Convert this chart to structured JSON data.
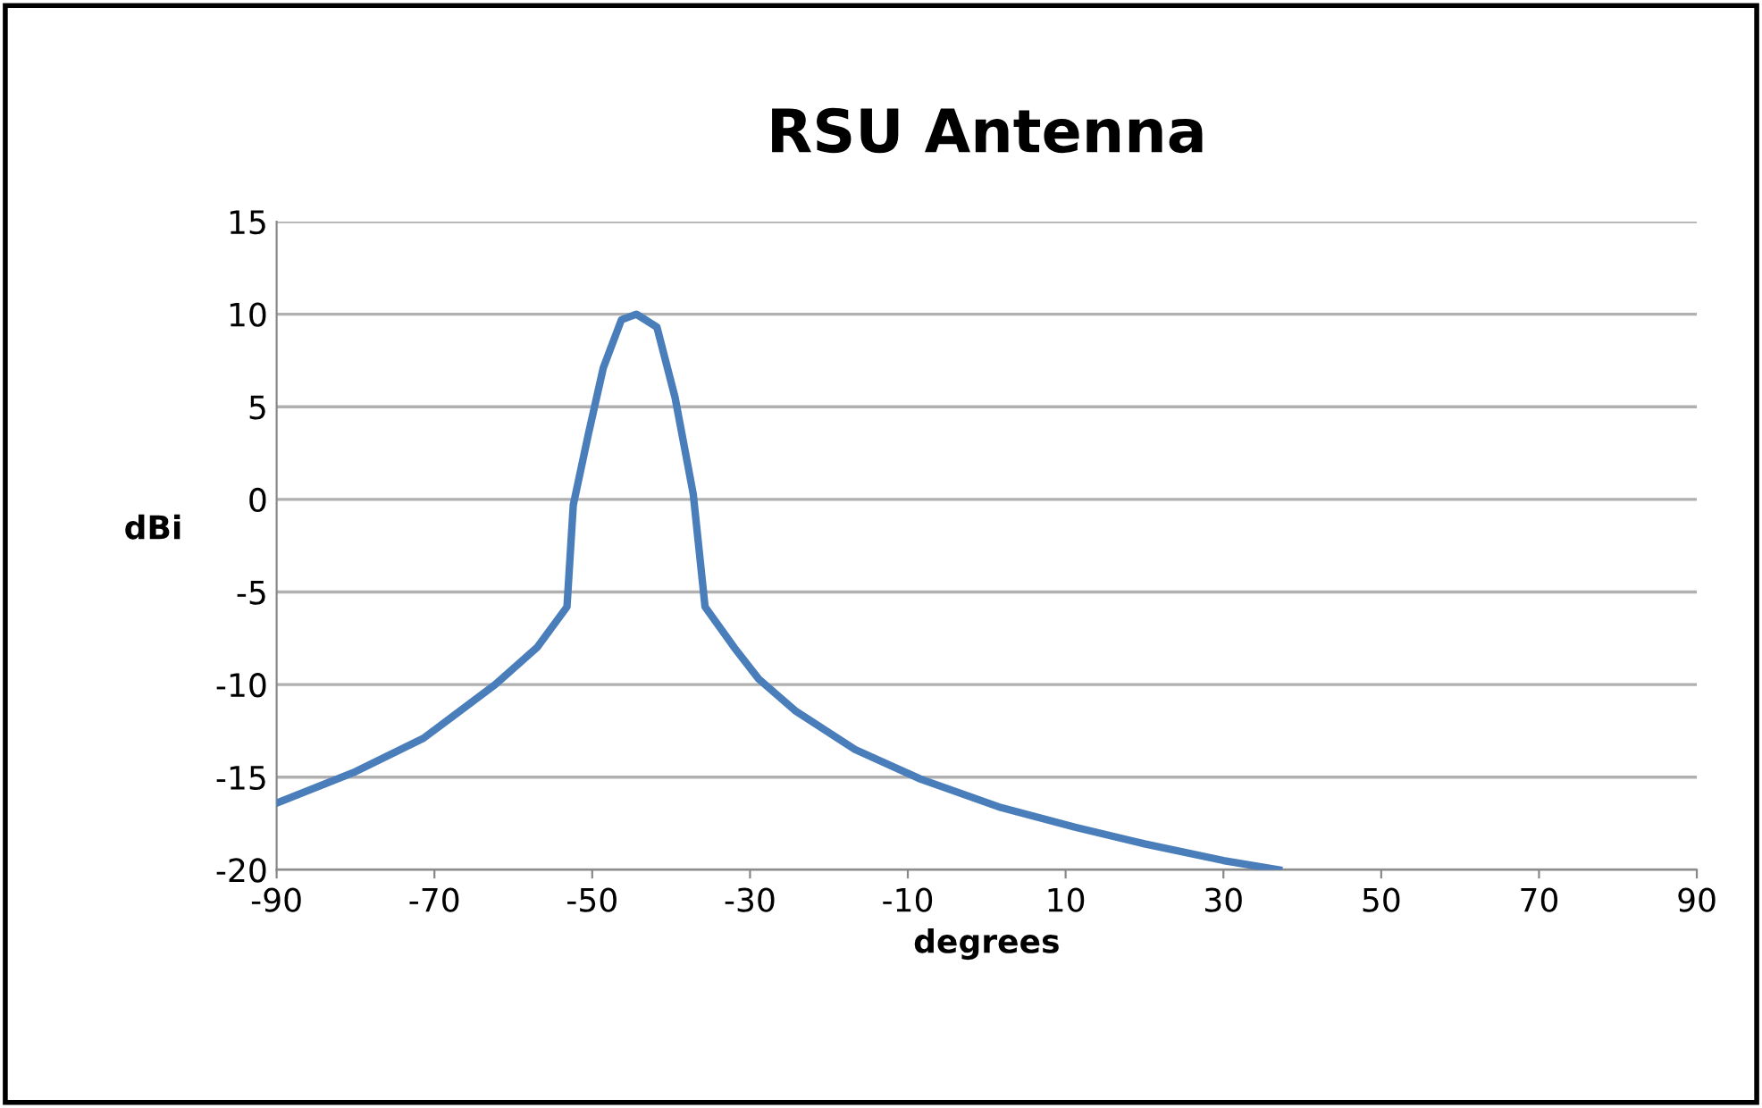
{
  "chart_data": {
    "type": "line",
    "title": "RSU Antenna",
    "xlabel": "degrees",
    "ylabel": "dBi",
    "series": [
      {
        "color": "#4a7ebb",
        "x": [
          -90,
          -80,
          -71.4,
          -62.3,
          -57,
          -53.2,
          -52.4,
          -50.5,
          -48.6,
          -46.3,
          -44.4,
          -41.8,
          -39.5,
          -37.2,
          -35.7,
          -32,
          -28.9,
          -24.3,
          -16.7,
          -8.4,
          1.5,
          11.2,
          20,
          30,
          37
        ],
        "values": [
          -16.4,
          -14.7,
          -12.9,
          -10.0,
          -8.0,
          -5.8,
          -0.3,
          3.5,
          7.1,
          9.7,
          10.0,
          9.3,
          5.5,
          0.3,
          -5.8,
          -8.0,
          -9.7,
          -11.4,
          -13.5,
          -15.1,
          -16.6,
          -17.7,
          -18.6,
          -19.5,
          -20
        ]
      }
    ],
    "xlim": [
      -90,
      90
    ],
    "xticks": [
      -90,
      -70,
      -50,
      -30,
      -10,
      10,
      30,
      50,
      70,
      90
    ],
    "ylim": [
      -20,
      15
    ],
    "yticks": [
      -20,
      -15,
      -10,
      -5,
      0,
      5,
      10,
      15
    ],
    "grid": "y",
    "legend": false,
    "marker": "none",
    "line_style": "solid"
  }
}
